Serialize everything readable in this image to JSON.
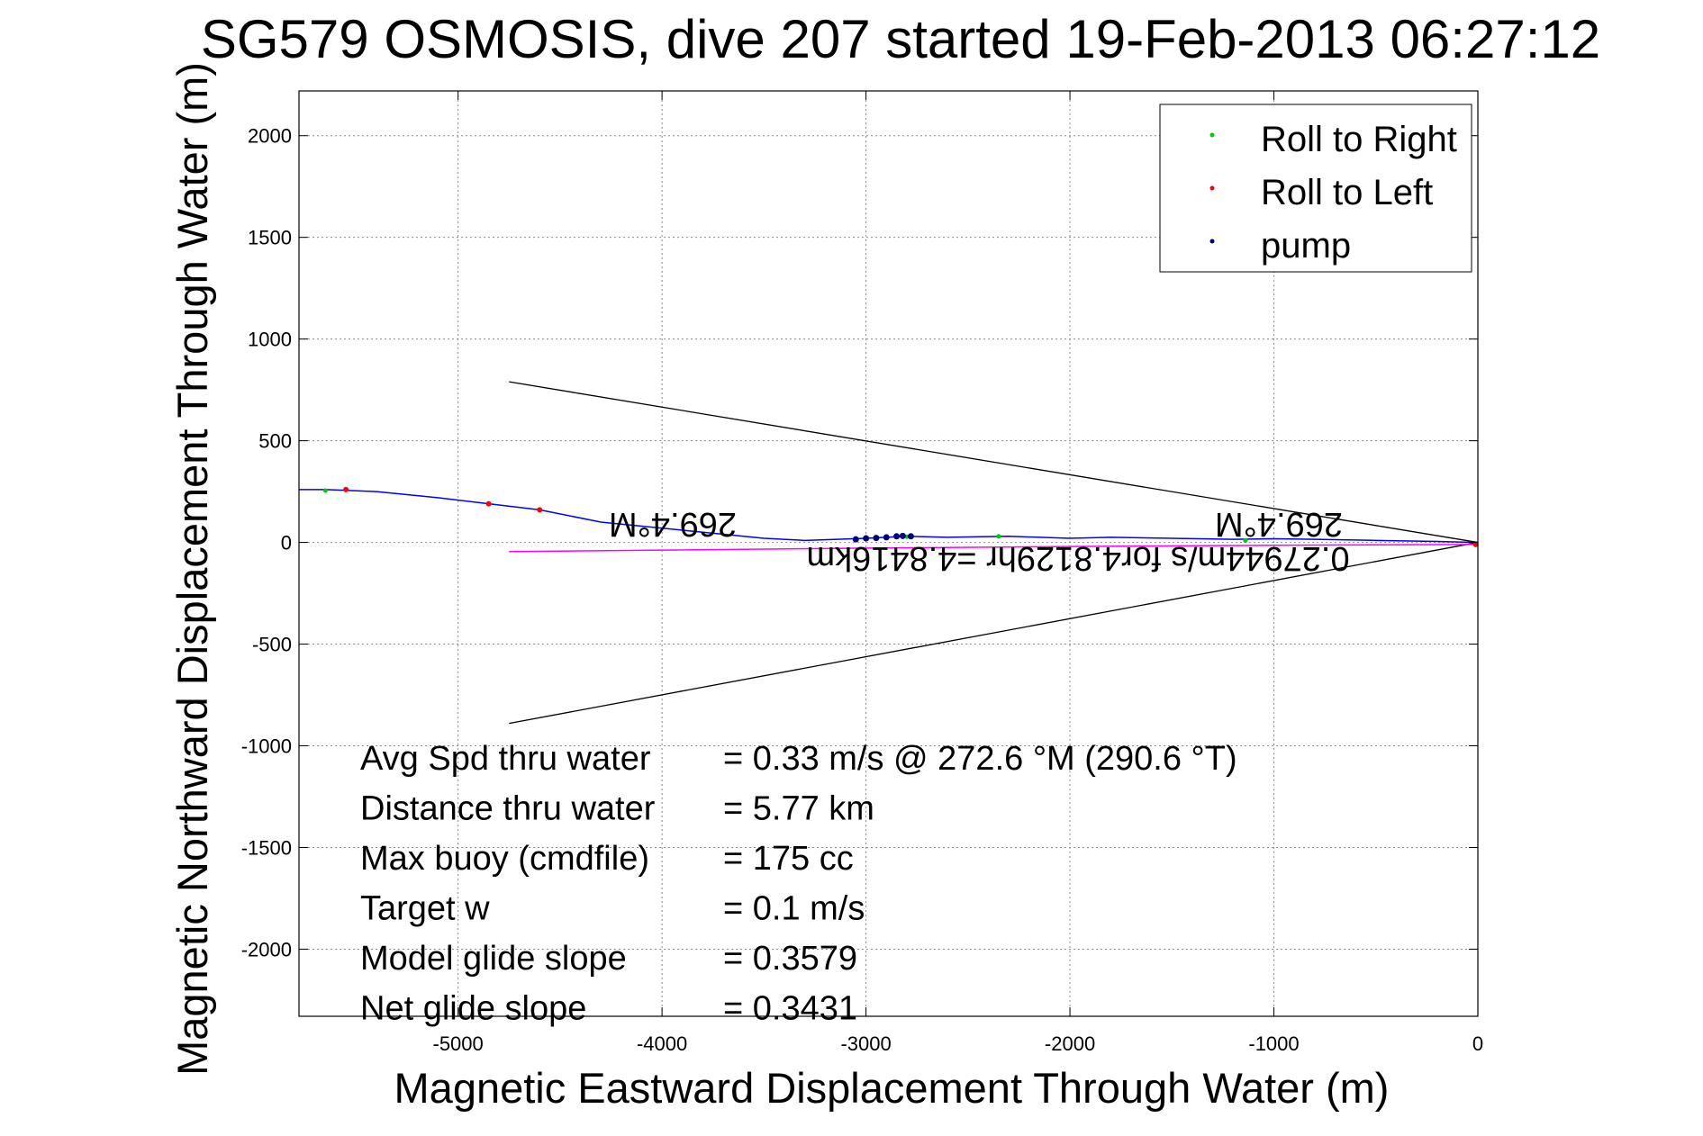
{
  "chart_data": {
    "type": "line",
    "title": "SG579 OSMOSIS, dive 207 started 19-Feb-2013 06:27:12",
    "xlabel": "Magnetic Eastward Displacement Through Water (m)",
    "ylabel": "Magnetic Northward Displacement Through Water (m)",
    "xlim": [
      -5780,
      0
    ],
    "ylim": [
      -2330,
      2220
    ],
    "xticks": [
      -5000,
      -4000,
      -3000,
      -2000,
      -1000,
      0
    ],
    "yticks": [
      2000,
      1500,
      1000,
      500,
      0,
      -500,
      -1000,
      -1500,
      -2000
    ],
    "grid": true,
    "legend_position": "top-right",
    "legend": [
      {
        "label": "Roll to Right",
        "color": "#00cc00"
      },
      {
        "label": "Roll to Left",
        "color": "#ff0000"
      },
      {
        "label": "pump",
        "color": "#000080"
      }
    ],
    "series": [
      {
        "color": "#0000ff",
        "x": [
          0,
          -200,
          -500,
          -800,
          -1000,
          -1200,
          -1500,
          -1800,
          -2000,
          -2300,
          -2600,
          -2800,
          -3000,
          -3300,
          -3500,
          -3800,
          -4000,
          -4300,
          -4600,
          -4850,
          -5100,
          -5400,
          -5650,
          -5780
        ],
        "y": [
          0,
          5,
          10,
          15,
          18,
          15,
          20,
          25,
          20,
          30,
          25,
          30,
          20,
          10,
          20,
          50,
          70,
          100,
          160,
          190,
          220,
          250,
          260,
          260
        ]
      },
      {
        "color": "#ff00ff",
        "x": [
          0,
          -1000,
          -2000,
          -3000,
          -4000,
          -4750
        ],
        "y": [
          -10,
          -14,
          -20,
          -28,
          -38,
          -45
        ]
      }
    ],
    "cone_lines": [
      {
        "color": "#000000",
        "x": [
          -4750,
          0
        ],
        "y": [
          790,
          0
        ]
      },
      {
        "color": "#000000",
        "x": [
          -4750,
          0
        ],
        "y": [
          -890,
          0
        ]
      }
    ],
    "markers": {
      "roll_right": {
        "color": "#00cc00",
        "x": [
          -5650,
          -1140,
          -2350,
          -2800
        ],
        "y": [
          255,
          10,
          30,
          28
        ]
      },
      "roll_left": {
        "color": "#ff0000",
        "x": [
          -5550,
          -4850,
          -4600,
          -10
        ],
        "y": [
          260,
          190,
          160,
          -10
        ]
      },
      "pump": {
        "color": "#000080",
        "x": [
          -3050,
          -3000,
          -2950,
          -2900,
          -2850,
          -2820,
          -2780
        ],
        "y": [
          15,
          20,
          22,
          25,
          30,
          32,
          30
        ]
      }
    },
    "annotations_flipped": [
      "269.4°M",
      "269.4°M",
      "0.27944m/s for4.8129hr =4.8416km"
    ],
    "stats": [
      {
        "label": "Avg Spd thru water",
        "value": "=  0.33 m/s @ 272.6 °M (290.6 °T)"
      },
      {
        "label": "Distance thru water",
        "value": "=  5.77 km"
      },
      {
        "label": "Max buoy (cmdfile)",
        "value": "= 175 cc"
      },
      {
        "label": "Target w",
        "value": "= 0.1 m/s"
      },
      {
        "label": "Model glide slope",
        "value": "= 0.3579"
      },
      {
        "label": "Net glide slope",
        "value": "= 0.3431"
      }
    ]
  }
}
